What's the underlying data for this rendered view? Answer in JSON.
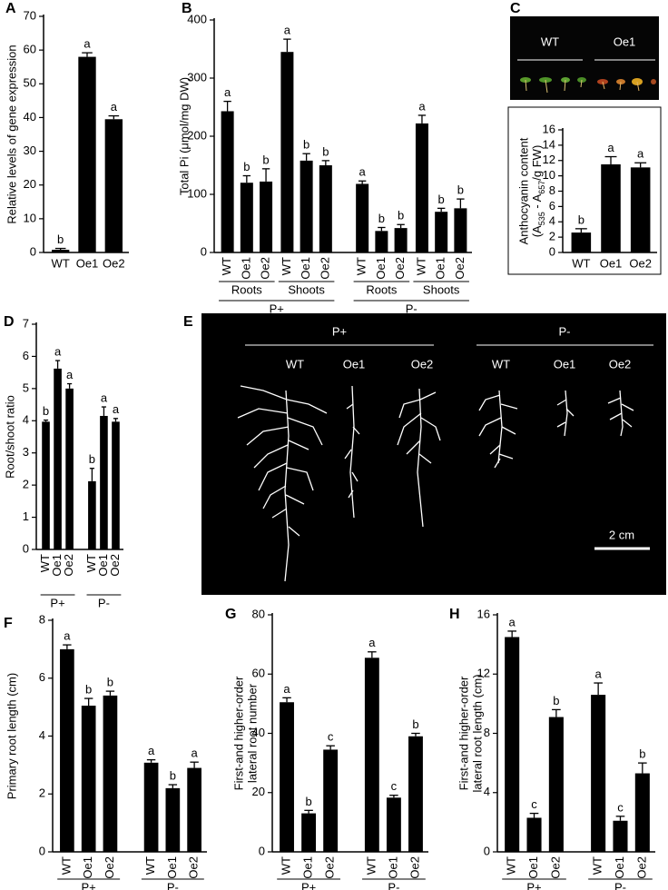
{
  "chart_data": [
    {
      "type": "bar",
      "panel": "A",
      "ylabel": "Relative levels of gene expression",
      "categories": [
        "WT",
        "Oe1",
        "Oe2"
      ],
      "values": [
        0.8,
        58,
        39.5
      ],
      "errors": [
        0.4,
        1.2,
        1.0
      ],
      "letters": [
        "b",
        "a",
        "a"
      ],
      "ylim": [
        0,
        70
      ],
      "yticks": [
        0,
        10,
        20,
        30,
        40,
        50,
        60,
        70
      ],
      "color": "#000000",
      "rotate_labels": false
    },
    {
      "type": "bar",
      "panel": "B",
      "ylabel": "Total Pi (μmol/mg DW)",
      "ylim": [
        0,
        400
      ],
      "yticks": [
        0,
        100,
        200,
        300,
        400
      ],
      "color": "#000000",
      "rotate_labels": true,
      "groups": [
        {
          "name": "P+",
          "groups": [
            {
              "name": "Roots",
              "categories": [
                "WT",
                "Oe1",
                "Oe2"
              ],
              "values": [
                243,
                120,
                122
              ],
              "errors": [
                17,
                12,
                22
              ],
              "letters": [
                "a",
                "b",
                "b"
              ]
            },
            {
              "name": "Shoots",
              "categories": [
                "WT",
                "Oe1",
                "Oe2"
              ],
              "values": [
                345,
                158,
                150
              ],
              "errors": [
                22,
                12,
                8
              ],
              "letters": [
                "a",
                "b",
                "b"
              ]
            }
          ]
        },
        {
          "name": "P-",
          "groups": [
            {
              "name": "Roots",
              "categories": [
                "WT",
                "Oe1",
                "Oe2"
              ],
              "values": [
                118,
                37,
                42
              ],
              "errors": [
                5,
                6,
                6
              ],
              "letters": [
                "a",
                "b",
                "b"
              ]
            },
            {
              "name": "Shoots",
              "categories": [
                "WT",
                "Oe1",
                "Oe2"
              ],
              "values": [
                222,
                70,
                76
              ],
              "errors": [
                14,
                6,
                16
              ],
              "letters": [
                "a",
                "b",
                "b"
              ]
            }
          ]
        }
      ]
    },
    {
      "type": "bar",
      "panel": "C",
      "image_labels": [
        "WT",
        "Oe1"
      ],
      "ylabel": [
        "Anthocyanin content",
        [
          {
            "text": "(A"
          },
          {
            "text": "535",
            "sub": true
          },
          {
            "text": " - A"
          },
          {
            "text": "657",
            "sub": true
          },
          {
            "text": "/g FW)"
          }
        ]
      ],
      "categories": [
        "WT",
        "Oe1",
        "Oe2"
      ],
      "values": [
        2.6,
        11.5,
        11.1
      ],
      "errors": [
        0.5,
        1.0,
        0.6
      ],
      "letters": [
        "b",
        "a",
        "a"
      ],
      "ylim": [
        0,
        16
      ],
      "yticks": [
        0,
        2,
        4,
        6,
        8,
        10,
        12,
        14,
        16
      ],
      "color": "#000000",
      "rotate_labels": false
    },
    {
      "type": "bar",
      "panel": "D",
      "ylabel": "Root/shoot ratio",
      "ylim": [
        0,
        7
      ],
      "yticks": [
        0,
        1,
        2,
        3,
        4,
        5,
        6,
        7
      ],
      "color": "#000000",
      "rotate_labels": true,
      "groups": [
        {
          "name": "P+",
          "categories": [
            "WT",
            "Oe1",
            "Oe2"
          ],
          "values": [
            3.97,
            5.62,
            5.0
          ],
          "errors": [
            0.05,
            0.25,
            0.15
          ],
          "letters": [
            "b",
            "a",
            "a"
          ]
        },
        {
          "name": "P-",
          "categories": [
            "WT",
            "Oe1",
            "Oe2"
          ],
          "values": [
            2.12,
            4.15,
            3.97
          ],
          "errors": [
            0.4,
            0.28,
            0.1
          ],
          "letters": [
            "b",
            "a",
            "a"
          ]
        }
      ]
    },
    {
      "type": "image",
      "panel": "E",
      "groups": [
        {
          "name": "P+",
          "labels": [
            "WT",
            "Oe1",
            "Oe2"
          ]
        },
        {
          "name": "P-",
          "labels": [
            "WT",
            "Oe1",
            "Oe2"
          ]
        }
      ],
      "scale_bar": "2 cm"
    },
    {
      "type": "bar",
      "panel": "F",
      "ylabel": "Primary root length (cm)",
      "ylim": [
        0,
        8
      ],
      "yticks": [
        0,
        2,
        4,
        6,
        8
      ],
      "color": "#000000",
      "rotate_labels": true,
      "groups": [
        {
          "name": "P+",
          "categories": [
            "WT",
            "Oe1",
            "Oe2"
          ],
          "values": [
            7.0,
            5.05,
            5.4
          ],
          "errors": [
            0.15,
            0.25,
            0.15
          ],
          "letters": [
            "a",
            "b",
            "b"
          ]
        },
        {
          "name": "P-",
          "categories": [
            "WT",
            "Oe1",
            "Oe2"
          ],
          "values": [
            3.08,
            2.2,
            2.9
          ],
          "errors": [
            0.1,
            0.12,
            0.2
          ],
          "letters": [
            "a",
            "b",
            "a"
          ]
        }
      ]
    },
    {
      "type": "bar",
      "panel": "G",
      "ylabel": [
        "First-and higher-order",
        "lateral root number"
      ],
      "ylim": [
        0,
        80
      ],
      "yticks": [
        0,
        20,
        40,
        60,
        80
      ],
      "color": "#000000",
      "rotate_labels": true,
      "groups": [
        {
          "name": "P+",
          "categories": [
            "WT",
            "Oe1",
            "Oe2"
          ],
          "values": [
            50.5,
            13,
            34.5
          ],
          "errors": [
            1.5,
            1,
            1.3
          ],
          "letters": [
            "a",
            "b",
            "c"
          ]
        },
        {
          "name": "P-",
          "categories": [
            "WT",
            "Oe1",
            "Oe2"
          ],
          "values": [
            65.5,
            18.3,
            39
          ],
          "errors": [
            2,
            0.8,
            1
          ],
          "letters": [
            "a",
            "c",
            "b"
          ]
        }
      ]
    },
    {
      "type": "bar",
      "panel": "H",
      "ylabel": [
        "First-and higher-order",
        "lateral root length (cm)"
      ],
      "ylim": [
        0,
        16
      ],
      "yticks": [
        0,
        4,
        8,
        12,
        16
      ],
      "color": "#000000",
      "rotate_labels": true,
      "groups": [
        {
          "name": "P+",
          "categories": [
            "WT",
            "Oe1",
            "Oe2"
          ],
          "values": [
            14.5,
            2.3,
            9.1
          ],
          "errors": [
            0.4,
            0.3,
            0.5
          ],
          "letters": [
            "a",
            "c",
            "b"
          ]
        },
        {
          "name": "P-",
          "categories": [
            "WT",
            "Oe1",
            "Oe2"
          ],
          "values": [
            10.6,
            2.1,
            5.3
          ],
          "errors": [
            0.8,
            0.3,
            0.7
          ],
          "letters": [
            "a",
            "c",
            "b"
          ]
        }
      ]
    }
  ]
}
